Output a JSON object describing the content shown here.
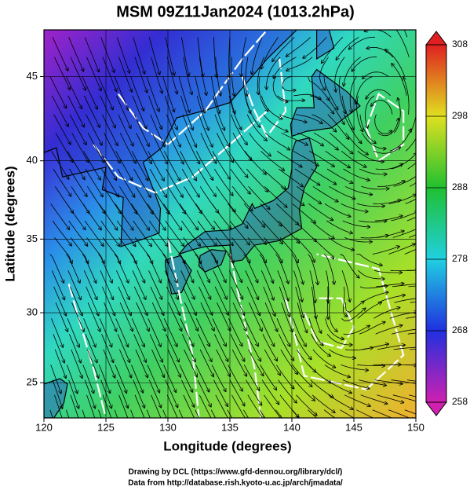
{
  "map": {
    "title": "MSM 09Z11Jan2024 (1013.2hPa)",
    "xlabel": "Longitude (degrees)",
    "ylabel": "Latitude  (degrees)",
    "xlim": [
      120,
      150
    ],
    "ylim": [
      22.4,
      47.6
    ],
    "xticks": [
      120,
      125,
      130,
      135,
      140,
      145,
      150
    ],
    "yticks": [
      25,
      30,
      35,
      40,
      45
    ],
    "colorbar": {
      "lim": [
        258,
        308
      ],
      "ticks": [
        258,
        268,
        278,
        288,
        298,
        308
      ]
    },
    "credits": [
      "Drawing by DCL (https://www.gfd-dennou.org/library/dcl/)",
      "Data from http://database.rish.kyoto-u.ac.jp/arch/jmadata/"
    ]
  }
}
